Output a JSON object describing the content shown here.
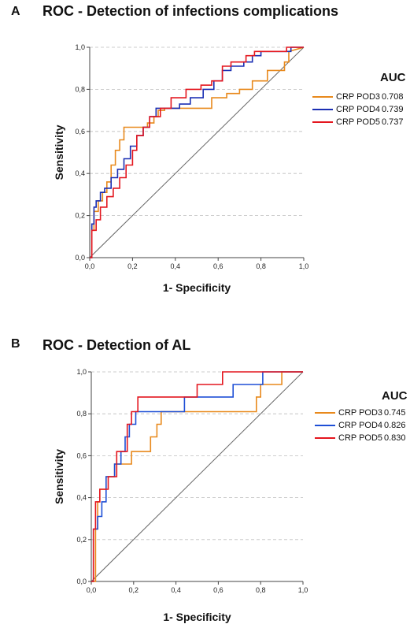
{
  "panels": [
    {
      "letter": "A",
      "title": "ROC - Detection of infections complications",
      "legend_header": "AUC",
      "chart_data": {
        "type": "line",
        "title": "ROC - Detection of infections complications",
        "xlabel": "1- Specificity",
        "ylabel": "Sensitivity",
        "xlim": [
          0,
          1
        ],
        "ylim": [
          0,
          1
        ],
        "xticks": [
          "0,0",
          "0,2",
          "0,4",
          "0,6",
          "0,8",
          "1,0"
        ],
        "yticks": [
          "0,0",
          "0,2",
          "0,4",
          "0,6",
          "0,8",
          "1,0"
        ],
        "grid": "horizontal-dashed",
        "legend_position": "right",
        "reference_line": true,
        "series": [
          {
            "name": "CRP POD3",
            "auc": "0.708",
            "color": "#e8891c",
            "x": [
              0,
              0.01,
              0.01,
              0.02,
              0.02,
              0.04,
              0.04,
              0.06,
              0.06,
              0.08,
              0.08,
              0.1,
              0.1,
              0.12,
              0.12,
              0.14,
              0.14,
              0.16,
              0.16,
              0.27,
              0.27,
              0.3,
              0.3,
              0.32,
              0.32,
              0.35,
              0.35,
              0.4,
              0.4,
              0.57,
              0.57,
              0.64,
              0.64,
              0.7,
              0.7,
              0.76,
              0.76,
              0.83,
              0.83,
              0.91,
              0.91,
              0.93,
              0.93,
              1.0
            ],
            "y": [
              0,
              0,
              0.13,
              0.13,
              0.22,
              0.22,
              0.27,
              0.27,
              0.31,
              0.31,
              0.36,
              0.36,
              0.44,
              0.44,
              0.51,
              0.51,
              0.56,
              0.56,
              0.62,
              0.62,
              0.64,
              0.64,
              0.67,
              0.67,
              0.7,
              0.7,
              0.71,
              0.71,
              0.71,
              0.71,
              0.76,
              0.76,
              0.78,
              0.78,
              0.8,
              0.8,
              0.84,
              0.84,
              0.89,
              0.89,
              0.93,
              0.93,
              0.98,
              1.0
            ]
          },
          {
            "name": "CRP POD4",
            "auc": "0.739",
            "color": "#1b2fb3",
            "x": [
              0,
              0.01,
              0.01,
              0.02,
              0.02,
              0.03,
              0.03,
              0.05,
              0.05,
              0.07,
              0.07,
              0.1,
              0.1,
              0.13,
              0.13,
              0.16,
              0.16,
              0.19,
              0.19,
              0.22,
              0.22,
              0.25,
              0.25,
              0.28,
              0.28,
              0.31,
              0.31,
              0.42,
              0.42,
              0.47,
              0.47,
              0.53,
              0.53,
              0.58,
              0.58,
              0.62,
              0.62,
              0.66,
              0.66,
              0.72,
              0.72,
              0.76,
              0.76,
              0.8,
              0.8,
              0.86,
              0.86,
              0.94,
              0.94,
              1.0
            ],
            "y": [
              0,
              0,
              0.16,
              0.16,
              0.24,
              0.24,
              0.27,
              0.27,
              0.31,
              0.31,
              0.33,
              0.33,
              0.38,
              0.38,
              0.42,
              0.42,
              0.47,
              0.47,
              0.53,
              0.53,
              0.58,
              0.58,
              0.62,
              0.62,
              0.67,
              0.67,
              0.71,
              0.71,
              0.73,
              0.73,
              0.76,
              0.76,
              0.8,
              0.8,
              0.84,
              0.84,
              0.89,
              0.89,
              0.91,
              0.91,
              0.93,
              0.93,
              0.96,
              0.96,
              0.98,
              0.98,
              0.98,
              0.98,
              1.0,
              1.0
            ]
          },
          {
            "name": "CRP POD5",
            "auc": "0.737",
            "color": "#e4161e",
            "x": [
              0,
              0.01,
              0.01,
              0.03,
              0.03,
              0.05,
              0.05,
              0.08,
              0.08,
              0.11,
              0.11,
              0.14,
              0.14,
              0.17,
              0.17,
              0.2,
              0.2,
              0.22,
              0.22,
              0.25,
              0.25,
              0.28,
              0.28,
              0.33,
              0.33,
              0.38,
              0.38,
              0.45,
              0.45,
              0.52,
              0.52,
              0.57,
              0.57,
              0.62,
              0.62,
              0.66,
              0.66,
              0.73,
              0.73,
              0.77,
              0.77,
              0.92,
              0.92,
              1.0
            ],
            "y": [
              0,
              0,
              0.13,
              0.13,
              0.18,
              0.18,
              0.24,
              0.24,
              0.29,
              0.29,
              0.33,
              0.33,
              0.38,
              0.38,
              0.44,
              0.44,
              0.51,
              0.51,
              0.58,
              0.58,
              0.62,
              0.62,
              0.67,
              0.67,
              0.71,
              0.71,
              0.76,
              0.76,
              0.8,
              0.8,
              0.82,
              0.82,
              0.84,
              0.84,
              0.91,
              0.91,
              0.93,
              0.93,
              0.96,
              0.96,
              0.98,
              0.98,
              1.0,
              1.0
            ]
          }
        ]
      }
    },
    {
      "letter": "B",
      "title": "ROC - Detection of AL",
      "legend_header": "AUC",
      "chart_data": {
        "type": "line",
        "title": "ROC - Detection of AL",
        "xlabel": "1- Specificity",
        "ylabel": "Sensitivity",
        "xlim": [
          0,
          1
        ],
        "ylim": [
          0,
          1
        ],
        "xticks": [
          "0,0",
          "0,2",
          "0,4",
          "0,6",
          "0,8",
          "1,0"
        ],
        "yticks": [
          "0,0",
          "0,2",
          "0,4",
          "0,6",
          "0,8",
          "1,0"
        ],
        "grid": "horizontal-dashed",
        "legend_position": "right",
        "reference_line": true,
        "series": [
          {
            "name": "CRP POD3",
            "auc": "0.745",
            "color": "#e8891c",
            "x": [
              0,
              0.02,
              0.02,
              0.03,
              0.03,
              0.04,
              0.04,
              0.07,
              0.07,
              0.09,
              0.09,
              0.11,
              0.11,
              0.15,
              0.15,
              0.19,
              0.19,
              0.23,
              0.23,
              0.28,
              0.28,
              0.31,
              0.31,
              0.33,
              0.33,
              0.37,
              0.37,
              0.55,
              0.55,
              0.78,
              0.78,
              0.8,
              0.8,
              0.9,
              0.9,
              1.0
            ],
            "y": [
              0,
              0,
              0.25,
              0.25,
              0.38,
              0.38,
              0.44,
              0.44,
              0.5,
              0.5,
              0.5,
              0.5,
              0.56,
              0.56,
              0.56,
              0.56,
              0.62,
              0.62,
              0.62,
              0.62,
              0.69,
              0.69,
              0.75,
              0.75,
              0.81,
              0.81,
              0.81,
              0.81,
              0.81,
              0.81,
              0.88,
              0.88,
              0.94,
              0.94,
              1.0,
              1.0
            ]
          },
          {
            "name": "CRP POD4",
            "auc": "0.826",
            "color": "#1e4fd6",
            "x": [
              0,
              0.01,
              0.01,
              0.03,
              0.03,
              0.05,
              0.05,
              0.07,
              0.07,
              0.11,
              0.11,
              0.14,
              0.14,
              0.16,
              0.16,
              0.18,
              0.18,
              0.21,
              0.21,
              0.34,
              0.34,
              0.44,
              0.44,
              0.67,
              0.67,
              0.81,
              0.81,
              1.0
            ],
            "y": [
              0,
              0,
              0.25,
              0.25,
              0.31,
              0.31,
              0.38,
              0.38,
              0.5,
              0.5,
              0.56,
              0.56,
              0.62,
              0.62,
              0.69,
              0.69,
              0.75,
              0.75,
              0.81,
              0.81,
              0.81,
              0.81,
              0.88,
              0.88,
              0.94,
              0.94,
              1.0,
              1.0
            ]
          },
          {
            "name": "CRP POD5",
            "auc": "0.830",
            "color": "#e4161e",
            "x": [
              0,
              0.01,
              0.01,
              0.02,
              0.02,
              0.04,
              0.04,
              0.08,
              0.08,
              0.12,
              0.12,
              0.17,
              0.17,
              0.19,
              0.19,
              0.22,
              0.22,
              0.31,
              0.31,
              0.5,
              0.5,
              0.62,
              0.62,
              0.8,
              0.8,
              1.0
            ],
            "y": [
              0,
              0,
              0.25,
              0.25,
              0.38,
              0.38,
              0.44,
              0.44,
              0.5,
              0.5,
              0.62,
              0.62,
              0.75,
              0.75,
              0.81,
              0.81,
              0.88,
              0.88,
              0.88,
              0.88,
              0.94,
              0.94,
              1.0,
              1.0,
              1.0,
              1.0
            ]
          }
        ]
      }
    }
  ]
}
